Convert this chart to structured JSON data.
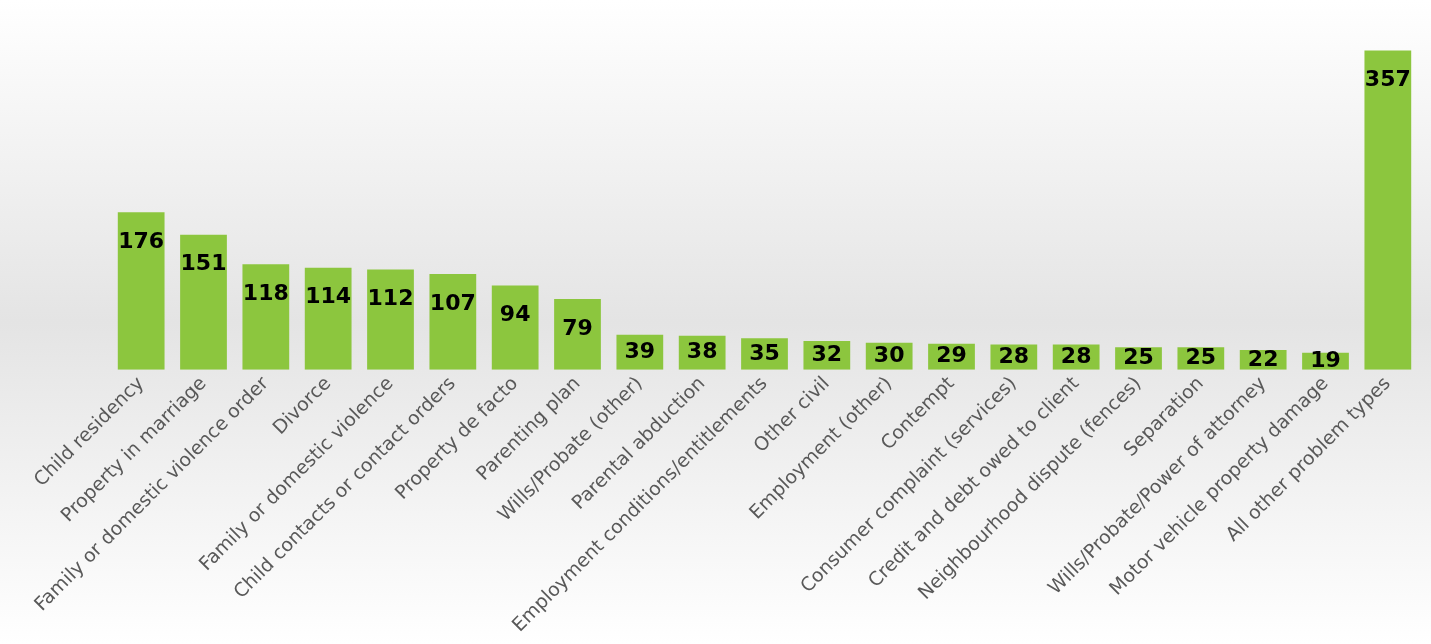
{
  "chart_data": {
    "type": "bar",
    "categories": [
      "Child residency",
      "Property in marriage",
      "Family or domestic violence order",
      "Divorce",
      "Family or domestic violence",
      "Child contacts or contact orders",
      "Property de facto",
      "Parenting plan",
      "Wills/Probate (other)",
      "Parental abduction",
      "Employment conditions/entitlements",
      "Other civil",
      "Employment (other)",
      "Contempt",
      "Consumer complaint (services)",
      "Credit and debt owed to client",
      "Neighbourhood dispute (fences)",
      "Separation",
      "Wills/Probate/Power of attorney",
      "Motor vehicle property damage",
      "All other problem types"
    ],
    "values": [
      176,
      151,
      118,
      114,
      112,
      107,
      94,
      79,
      39,
      38,
      35,
      32,
      30,
      29,
      28,
      28,
      25,
      25,
      22,
      19,
      357
    ],
    "color": "#8cc63e",
    "data_labels": true,
    "grid": false,
    "legend": false,
    "tick_labels": "x"
  }
}
